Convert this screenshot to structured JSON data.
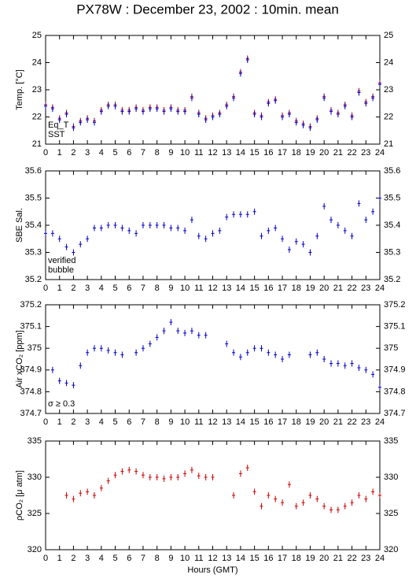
{
  "title": "PX78W : December 23, 2002 : 10min. mean",
  "chart_data": [
    {
      "type": "scatter",
      "ylabel": "Temp. [°C]",
      "xlim": [
        0,
        24
      ],
      "xticks": [
        0,
        1,
        2,
        3,
        4,
        5,
        6,
        7,
        8,
        9,
        10,
        11,
        12,
        13,
        14,
        15,
        16,
        17,
        18,
        19,
        20,
        21,
        22,
        23,
        24
      ],
      "ylim": [
        21,
        25
      ],
      "yticks": [
        21,
        22,
        23,
        24,
        25
      ],
      "x": [
        0,
        0.5,
        1,
        1.5,
        2,
        2.5,
        3,
        3.5,
        4,
        4.5,
        5,
        5.5,
        6,
        6.5,
        7,
        7.5,
        8,
        8.5,
        9,
        9.5,
        10,
        10.5,
        11,
        11.5,
        12,
        12.5,
        13,
        13.5,
        14,
        14.5,
        15,
        15.5,
        16,
        16.5,
        17,
        17.5,
        18,
        18.5,
        19,
        19.5,
        20,
        20.5,
        21,
        21.5,
        22,
        22.5,
        23,
        23.5,
        24
      ],
      "series": [
        {
          "name": "Eq_T",
          "color": "#cc0000",
          "values": [
            22.45,
            22.35,
            21.95,
            22.15,
            21.65,
            21.85,
            21.95,
            21.85,
            22.25,
            22.45,
            22.45,
            22.25,
            22.25,
            22.35,
            22.25,
            22.35,
            22.35,
            22.25,
            22.35,
            22.25,
            22.25,
            22.75,
            22.15,
            21.95,
            22.05,
            22.15,
            22.45,
            22.75,
            23.65,
            24.15,
            22.15,
            22.05,
            22.55,
            22.65,
            22.05,
            22.15,
            21.85,
            21.75,
            21.65,
            21.95,
            22.75,
            22.25,
            22.15,
            22.45,
            22.05,
            22.95,
            22.55,
            22.75,
            23.25
          ]
        },
        {
          "name": "SST",
          "color": "#0000cc",
          "values": [
            22.4,
            22.3,
            21.9,
            22.1,
            21.6,
            21.8,
            21.9,
            21.8,
            22.2,
            22.4,
            22.4,
            22.2,
            22.2,
            22.3,
            22.2,
            22.3,
            22.3,
            22.2,
            22.3,
            22.2,
            22.2,
            22.7,
            22.1,
            21.9,
            22.0,
            22.1,
            22.4,
            22.7,
            23.6,
            24.1,
            22.1,
            22.0,
            22.5,
            22.6,
            22.0,
            22.1,
            21.8,
            21.7,
            21.6,
            21.9,
            22.7,
            22.2,
            22.1,
            22.4,
            22.0,
            22.9,
            22.5,
            22.7,
            23.2
          ]
        }
      ]
    },
    {
      "type": "scatter",
      "ylabel": "SBE Sal.",
      "xlim": [
        0,
        24
      ],
      "xticks": [
        0,
        1,
        2,
        3,
        4,
        5,
        6,
        7,
        8,
        9,
        10,
        11,
        12,
        13,
        14,
        15,
        16,
        17,
        18,
        19,
        20,
        21,
        22,
        23,
        24
      ],
      "ylim": [
        35.2,
        35.6
      ],
      "yticks": [
        35.2,
        35.3,
        35.4,
        35.5,
        35.6
      ],
      "x": [
        0,
        0.5,
        1,
        1.5,
        2,
        2.5,
        3,
        3.5,
        4,
        4.5,
        5,
        5.5,
        6,
        6.5,
        7,
        7.5,
        8,
        8.5,
        9,
        9.5,
        10,
        10.5,
        11,
        11.5,
        12,
        12.5,
        13,
        13.5,
        14,
        14.5,
        15,
        15.5,
        16,
        16.5,
        17,
        17.5,
        18,
        18.5,
        19,
        19.5,
        20,
        20.5,
        21,
        21.5,
        22,
        22.5,
        23,
        23.5,
        24
      ],
      "series": [
        {
          "name": "verified",
          "color": "#0000cc",
          "values": [
            35.37,
            35.37,
            35.35,
            35.32,
            35.3,
            35.33,
            35.35,
            35.39,
            35.39,
            35.4,
            35.4,
            35.39,
            35.38,
            35.37,
            35.4,
            35.4,
            35.4,
            35.4,
            35.39,
            35.39,
            35.38,
            35.42,
            35.36,
            35.35,
            35.37,
            35.38,
            35.43,
            35.44,
            35.44,
            35.44,
            35.45,
            35.36,
            35.38,
            35.39,
            35.35,
            35.31,
            35.34,
            35.33,
            35.3,
            35.36,
            35.47,
            35.42,
            35.4,
            35.38,
            35.36,
            35.48,
            35.42,
            35.45,
            35.5
          ]
        }
      ],
      "annotations": [
        {
          "text": "bubble",
          "color": "#cc00cc"
        }
      ]
    },
    {
      "type": "scatter",
      "ylabel": "Air xCO₂ [ppm]",
      "xlim": [
        0,
        24
      ],
      "xticks": [
        0,
        1,
        2,
        3,
        4,
        5,
        6,
        7,
        8,
        9,
        10,
        11,
        12,
        13,
        14,
        15,
        16,
        17,
        18,
        19,
        20,
        21,
        22,
        23,
        24
      ],
      "ylim": [
        374.7,
        375.2
      ],
      "yticks": [
        374.7,
        374.8,
        374.9,
        375,
        375.1,
        375.2
      ],
      "x": [
        0.5,
        1,
        1.5,
        2,
        2.5,
        3,
        3.5,
        4,
        4.5,
        5,
        5.5,
        6,
        6.5,
        7,
        7.5,
        8,
        8.5,
        9,
        9.5,
        10,
        10.5,
        11,
        11.5,
        12,
        12.5,
        13,
        13.5,
        14,
        14.5,
        15,
        15.5,
        16,
        16.5,
        17,
        17.5,
        18,
        18.5,
        19,
        19.5,
        20,
        20.5,
        21,
        21.5,
        22,
        22.5,
        23,
        23.5,
        24
      ],
      "series": [
        {
          "color": "#0000cc",
          "values": [
            374.9,
            374.85,
            374.84,
            374.83,
            374.92,
            374.98,
            375.0,
            375.0,
            374.99,
            374.98,
            374.97,
            null,
            374.98,
            375.0,
            375.02,
            375.05,
            375.08,
            375.12,
            375.08,
            375.07,
            375.08,
            375.06,
            375.06,
            null,
            null,
            375.02,
            374.98,
            374.96,
            374.98,
            375.0,
            375.0,
            374.98,
            374.97,
            374.95,
            374.97,
            null,
            null,
            374.97,
            374.98,
            374.95,
            374.93,
            374.93,
            374.92,
            374.93,
            374.91,
            374.9,
            374.88,
            374.82
          ]
        }
      ],
      "annotations": [
        {
          "text": "σ ≥ 0.3",
          "color": "#cc00cc"
        }
      ]
    },
    {
      "type": "scatter",
      "ylabel": "ρCO₂ [μ atm]",
      "xlabel": "Hours (GMT)",
      "xlim": [
        0,
        24
      ],
      "xticks": [
        0,
        1,
        2,
        3,
        4,
        5,
        6,
        7,
        8,
        9,
        10,
        11,
        12,
        13,
        14,
        15,
        16,
        17,
        18,
        19,
        20,
        21,
        22,
        23,
        24
      ],
      "ylim": [
        320,
        335
      ],
      "yticks": [
        320,
        325,
        330,
        335
      ],
      "x": [
        1.5,
        2,
        2.5,
        3,
        3.5,
        4,
        4.5,
        5,
        5.5,
        6,
        6.5,
        7,
        7.5,
        8,
        8.5,
        9,
        9.5,
        10,
        10.5,
        11,
        11.5,
        12,
        12.5,
        13,
        13.5,
        14,
        14.5,
        15,
        15.5,
        16,
        16.5,
        17,
        17.5,
        18,
        18.5,
        19,
        19.5,
        20,
        20.5,
        21,
        21.5,
        22,
        22.5,
        23,
        23.5,
        24
      ],
      "series": [
        {
          "color": "#cc0000",
          "values": [
            327.5,
            327,
            327.8,
            328,
            327.5,
            328.5,
            329.5,
            330.3,
            330.8,
            331,
            330.8,
            330.3,
            330,
            330,
            329.8,
            330,
            330,
            330.5,
            331,
            330.2,
            330,
            330,
            null,
            null,
            327.5,
            330.5,
            331.3,
            328,
            326,
            327.5,
            327,
            326.5,
            329,
            326,
            326.5,
            327.5,
            327,
            326,
            325.5,
            325.5,
            326,
            326.5,
            327.5,
            327,
            328,
            327.5
          ]
        }
      ]
    }
  ]
}
